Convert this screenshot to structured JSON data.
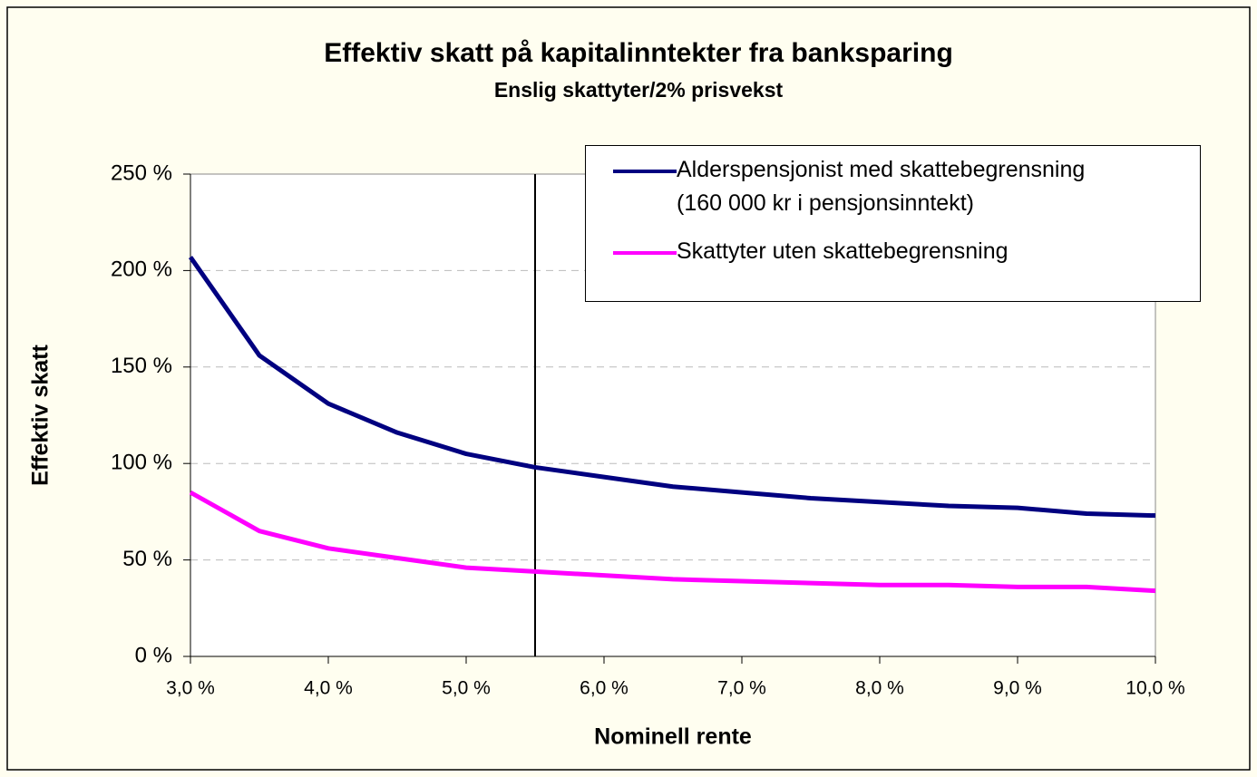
{
  "chart_data": {
    "type": "line",
    "title": "Effektiv skatt på kapitalinntekter fra banksparing",
    "subtitle": "Enslig skattyter/2% prisvekst",
    "x_label": "Nominell rente",
    "y_label": "Effektiv skatt",
    "x": [
      3.0,
      3.5,
      4.0,
      4.5,
      5.0,
      5.5,
      6.0,
      6.5,
      7.0,
      7.5,
      8.0,
      8.5,
      9.0,
      9.5,
      10.0
    ],
    "series": [
      {
        "name": "Alderspensjonist med skattebegrensning\n(160 000 kr i pensjonsinntekt)",
        "color": "#000080",
        "values": [
          207,
          156,
          131,
          116,
          105,
          98,
          93,
          88,
          85,
          82,
          80,
          78,
          77,
          74,
          73
        ]
      },
      {
        "name": "Skattyter uten skattebegrensning",
        "color": "#ff00ff",
        "values": [
          85,
          65,
          56,
          51,
          46,
          44,
          42,
          40,
          39,
          38,
          37,
          37,
          36,
          36,
          34
        ]
      }
    ],
    "xlim": [
      3.0,
      10.0
    ],
    "xticks": [
      {
        "value": 3,
        "label": "3,0 %"
      },
      {
        "value": 4,
        "label": "4,0 %"
      },
      {
        "value": 5,
        "label": "5,0 %"
      },
      {
        "value": 6,
        "label": "6,0 %"
      },
      {
        "value": 7,
        "label": "7,0 %"
      },
      {
        "value": 8,
        "label": "8,0 %"
      },
      {
        "value": 9,
        "label": "9,0 %"
      },
      {
        "value": 10,
        "label": "10,0 %"
      }
    ],
    "ylim": [
      0,
      250
    ],
    "yticks": [
      {
        "value": 0,
        "label": "0 %"
      },
      {
        "value": 50,
        "label": "50 %"
      },
      {
        "value": 100,
        "label": "100 %"
      },
      {
        "value": 150,
        "label": "150 %"
      },
      {
        "value": 200,
        "label": "200 %"
      },
      {
        "value": 250,
        "label": "250 %"
      }
    ],
    "reference_line_x": 5.5,
    "grid": true,
    "legend": "upper right"
  }
}
